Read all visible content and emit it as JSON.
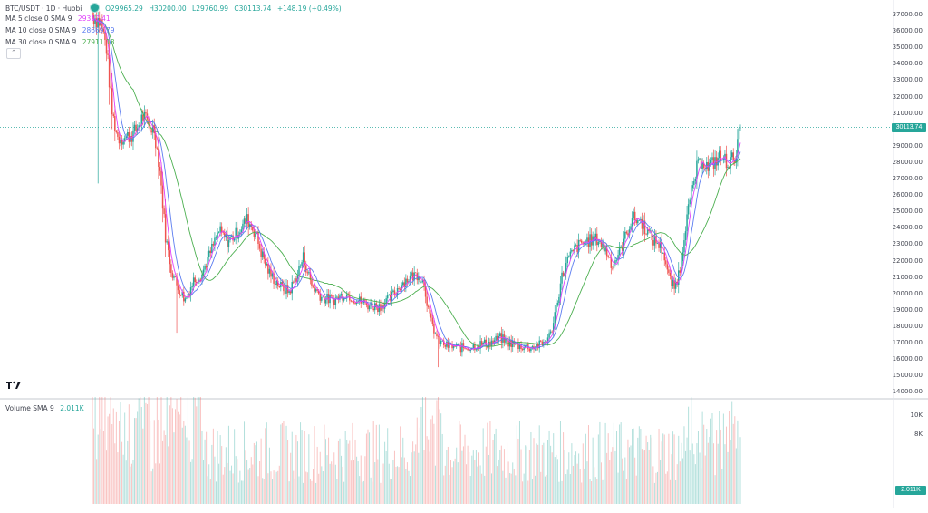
{
  "header": {
    "symbol": "BTC/USDT · 1D · Huobi",
    "open": "O29965.29",
    "high": "H30200.00",
    "low": "L29760.99",
    "close": "C30113.74",
    "change": "+148.19 (+0.49%)"
  },
  "indicators": [
    {
      "label": "MA 5 close 0 SMA 9",
      "value": "29317.41",
      "color": "#e040fb"
    },
    {
      "label": "MA 10 close 0 SMA 9",
      "value": "28669.79",
      "color": "#5b7cf0"
    },
    {
      "label": "MA 30 close 0 SMA 9",
      "value": "27911.18",
      "color": "#4caf50"
    }
  ],
  "volume_legend": {
    "label": "Volume SMA 9",
    "value": "2.011K"
  },
  "price_axis": [
    "37000.00",
    "36000.00",
    "35000.00",
    "34000.00",
    "33000.00",
    "32000.00",
    "31000.00",
    "29000.00",
    "28000.00",
    "27000.00",
    "26000.00",
    "25000.00",
    "24000.00",
    "23000.00",
    "22000.00",
    "21000.00",
    "20000.00",
    "19000.00",
    "18000.00",
    "17000.00",
    "16000.00",
    "15000.00",
    "14000.00"
  ],
  "last_price": "30113.74",
  "volume_axis": [
    "10K",
    "8K"
  ],
  "volume_last": "2.011K",
  "colors": {
    "up": "#26a69a",
    "down": "#ef5350",
    "ma5": "#e040fb",
    "ma10": "#5b7cf0",
    "ma30": "#4caf50",
    "grid": "#f0f3fa"
  },
  "chart_data": {
    "type": "candlestick",
    "ylim": [
      14000,
      37000
    ],
    "anchors": [
      [
        0,
        37000
      ],
      [
        6,
        36500
      ],
      [
        10,
        35000
      ],
      [
        14,
        31000
      ],
      [
        18,
        29500
      ],
      [
        24,
        29500
      ],
      [
        30,
        29800
      ],
      [
        36,
        30800
      ],
      [
        40,
        30200
      ],
      [
        44,
        30000
      ],
      [
        48,
        27500
      ],
      [
        52,
        23500
      ],
      [
        56,
        21500
      ],
      [
        60,
        20500
      ],
      [
        66,
        19600
      ],
      [
        72,
        20800
      ],
      [
        78,
        21200
      ],
      [
        84,
        22500
      ],
      [
        90,
        23800
      ],
      [
        96,
        23200
      ],
      [
        102,
        23600
      ],
      [
        110,
        24500
      ],
      [
        116,
        23700
      ],
      [
        120,
        22500
      ],
      [
        126,
        21200
      ],
      [
        134,
        20400
      ],
      [
        140,
        20100
      ],
      [
        146,
        21200
      ],
      [
        150,
        22200
      ],
      [
        156,
        20500
      ],
      [
        164,
        19700
      ],
      [
        172,
        19600
      ],
      [
        180,
        20000
      ],
      [
        188,
        19600
      ],
      [
        196,
        19300
      ],
      [
        204,
        19200
      ],
      [
        212,
        19700
      ],
      [
        220,
        20600
      ],
      [
        226,
        21000
      ],
      [
        232,
        21200
      ],
      [
        236,
        20600
      ],
      [
        240,
        18500
      ],
      [
        246,
        17100
      ],
      [
        252,
        16800
      ],
      [
        260,
        16700
      ],
      [
        268,
        16700
      ],
      [
        276,
        16900
      ],
      [
        284,
        17000
      ],
      [
        290,
        17300
      ],
      [
        296,
        17000
      ],
      [
        304,
        16800
      ],
      [
        312,
        16700
      ],
      [
        320,
        16900
      ],
      [
        326,
        17500
      ],
      [
        330,
        19200
      ],
      [
        334,
        21000
      ],
      [
        338,
        22000
      ],
      [
        344,
        22800
      ],
      [
        352,
        23200
      ],
      [
        360,
        23300
      ],
      [
        366,
        22500
      ],
      [
        370,
        21700
      ],
      [
        376,
        22700
      ],
      [
        384,
        24600
      ],
      [
        390,
        24400
      ],
      [
        394,
        23900
      ],
      [
        398,
        23300
      ],
      [
        402,
        23100
      ],
      [
        406,
        22600
      ],
      [
        410,
        21000
      ],
      [
        414,
        20300
      ],
      [
        418,
        21500
      ],
      [
        422,
        24200
      ],
      [
        426,
        26000
      ],
      [
        430,
        27600
      ],
      [
        434,
        28200
      ],
      [
        438,
        27600
      ],
      [
        442,
        28000
      ],
      [
        446,
        28300
      ],
      [
        450,
        28100
      ],
      [
        454,
        28000
      ],
      [
        458,
        28600
      ],
      [
        461,
        30100
      ]
    ],
    "series": [
      {
        "name": "MA 5 close 0 SMA 9",
        "last": 29317.41
      },
      {
        "name": "MA 10 close 0 SMA 9",
        "last": 28669.79
      },
      {
        "name": "MA 30 close 0 SMA 9",
        "last": 27911.18
      }
    ],
    "last_close": 30113.74
  }
}
